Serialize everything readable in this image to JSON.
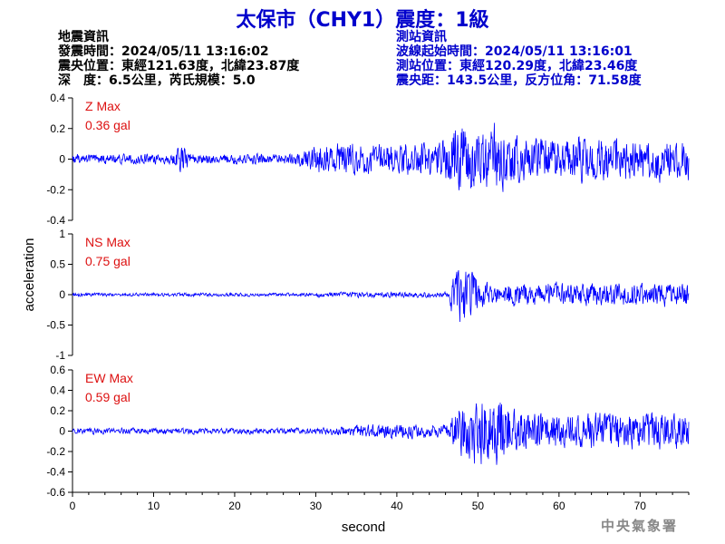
{
  "title": "太保市（CHY1）震度：1級",
  "quake_info": {
    "heading": "地震資訊",
    "origin_time": "發震時間：2024/05/11 13:16:02",
    "epicenter": "震央位置：東經121.63度，北緯23.87度",
    "depth_magnitude": "深　度：6.5公里，芮氏規模：5.0"
  },
  "station_info": {
    "heading": "測站資訊",
    "wave_start": "波線起始時間：2024/05/11 13:16:01",
    "station_location": "測站位置：東經120.29度，北緯23.46度",
    "distance_azimuth": "震央距：143.5公里，反方位角：71.58度"
  },
  "organization": "中央氣象署",
  "colors": {
    "trace": "#0000ff",
    "max_label": "#dd1111",
    "title": "#0000cc"
  },
  "chart_data": [
    {
      "type": "line",
      "component": "Z",
      "max_label": "Z Max",
      "max_value": "0.36 gal",
      "ylim": [
        -0.4,
        0.4
      ],
      "yticks": [
        -0.4,
        -0.2,
        0,
        0.2,
        0.4
      ],
      "ytick_labels": [
        "-0.4",
        "-0.2",
        "0",
        "0.2",
        "0.4"
      ]
    },
    {
      "type": "line",
      "component": "NS",
      "max_label": "NS Max",
      "max_value": "0.75 gal",
      "ylim": [
        -1,
        1
      ],
      "yticks": [
        -1,
        -0.5,
        0,
        0.5,
        1
      ],
      "ytick_labels": [
        "-1",
        "-0.5",
        "0",
        "0.5",
        "1"
      ]
    },
    {
      "type": "line",
      "component": "EW",
      "max_label": "EW Max",
      "max_value": "0.59 gal",
      "ylim": [
        -0.6,
        0.6
      ],
      "yticks": [
        -0.6,
        -0.4,
        -0.2,
        0,
        0.2,
        0.4,
        0.6
      ],
      "ytick_labels": [
        "-0.6",
        "-0.4",
        "-0.2",
        "0",
        "0.2",
        "0.4",
        "0.6"
      ]
    }
  ],
  "x_axis": {
    "label": "second",
    "xlim": [
      0,
      76
    ],
    "ticks": [
      0,
      10,
      20,
      30,
      40,
      50,
      60,
      70
    ],
    "tick_labels": [
      "0",
      "10",
      "20",
      "30",
      "40",
      "50",
      "60",
      "70"
    ]
  },
  "y_axis_label": "acceleration"
}
